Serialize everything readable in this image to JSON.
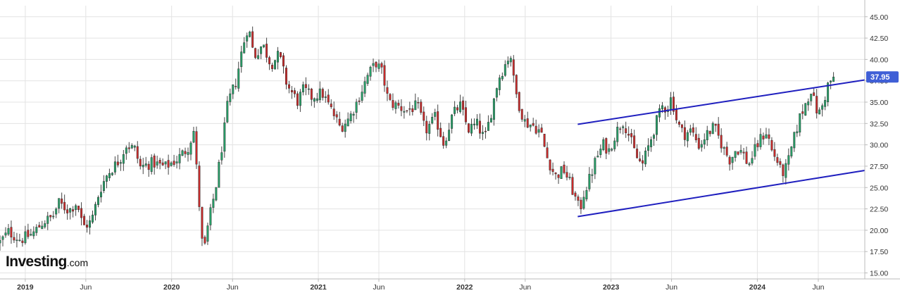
{
  "brand": {
    "name": "Investing",
    "suffix": ".com"
  },
  "colors": {
    "up": "#26a269",
    "down": "#cc2a2a",
    "channel": "#1f1fbf",
    "badge": "#3f5fd6",
    "axis": "#bbbbbb",
    "grid": "#e3e3e3"
  },
  "chart_data": {
    "type": "candlestick",
    "interval": "weekly",
    "ylim": [
      14.3,
      46.3
    ],
    "y_ticks": [
      "15.00",
      "17.50",
      "20.00",
      "22.50",
      "25.00",
      "27.50",
      "30.00",
      "32.50",
      "35.00",
      "37.50",
      "40.00",
      "42.50",
      "45.00"
    ],
    "x_ticks": [
      {
        "label": "2019",
        "date": "2019-01-01",
        "bold": true
      },
      {
        "label": "Jun",
        "date": "2019-06-01",
        "bold": false
      },
      {
        "label": "2020",
        "date": "2020-01-01",
        "bold": true
      },
      {
        "label": "Jun",
        "date": "2020-06-01",
        "bold": false
      },
      {
        "label": "2021",
        "date": "2021-01-01",
        "bold": true
      },
      {
        "label": "Jun",
        "date": "2021-06-01",
        "bold": false
      },
      {
        "label": "2022",
        "date": "2022-01-01",
        "bold": true
      },
      {
        "label": "Jun",
        "date": "2022-06-01",
        "bold": false
      },
      {
        "label": "2023",
        "date": "2023-01-01",
        "bold": true
      },
      {
        "label": "Jun",
        "date": "2023-06-01",
        "bold": false
      },
      {
        "label": "2024",
        "date": "2024-01-01",
        "bold": true
      },
      {
        "label": "Jun",
        "date": "2024-06-01",
        "bold": false
      }
    ],
    "x_range": [
      "2018-10-30",
      "2024-09-25"
    ],
    "last_price": "37.95",
    "close_anchors": [
      [
        "2018-10-30",
        18.6
      ],
      [
        "2018-11-20",
        19.8
      ],
      [
        "2018-12-20",
        18.9
      ],
      [
        "2019-01-20",
        19.6
      ],
      [
        "2019-02-15",
        21.0
      ],
      [
        "2019-03-10",
        21.5
      ],
      [
        "2019-03-25",
        23.2
      ],
      [
        "2019-04-20",
        22.3
      ],
      [
        "2019-05-10",
        23.3
      ],
      [
        "2019-05-25",
        20.4
      ],
      [
        "2019-06-15",
        21.0
      ],
      [
        "2019-07-05",
        24.6
      ],
      [
        "2019-07-25",
        26.6
      ],
      [
        "2019-08-25",
        28.3
      ],
      [
        "2019-09-10",
        30.0
      ],
      [
        "2019-10-01",
        29.5
      ],
      [
        "2019-10-15",
        27.4
      ],
      [
        "2019-11-15",
        27.9
      ],
      [
        "2019-12-15",
        27.4
      ],
      [
        "2020-01-15",
        28.3
      ],
      [
        "2020-02-10",
        29.6
      ],
      [
        "2020-02-25",
        31.6
      ],
      [
        "2020-03-10",
        23.0
      ],
      [
        "2020-03-20",
        16.8
      ],
      [
        "2020-04-01",
        20.6
      ],
      [
        "2020-04-20",
        25.0
      ],
      [
        "2020-05-10",
        31.2
      ],
      [
        "2020-05-20",
        34.8
      ],
      [
        "2020-06-10",
        37.5
      ],
      [
        "2020-06-25",
        41.2
      ],
      [
        "2020-07-10",
        44.0
      ],
      [
        "2020-07-25",
        40.3
      ],
      [
        "2020-08-15",
        41.8
      ],
      [
        "2020-09-05",
        39.4
      ],
      [
        "2020-09-25",
        40.6
      ],
      [
        "2020-10-15",
        37.0
      ],
      [
        "2020-11-10",
        35.1
      ],
      [
        "2020-11-25",
        36.5
      ],
      [
        "2020-12-15",
        35.6
      ],
      [
        "2021-01-10",
        36.1
      ],
      [
        "2021-02-01",
        34.2
      ],
      [
        "2021-02-25",
        32.0
      ],
      [
        "2021-03-20",
        33.2
      ],
      [
        "2021-04-10",
        35.3
      ],
      [
        "2021-05-05",
        38.2
      ],
      [
        "2021-05-25",
        39.6
      ],
      [
        "2021-06-10",
        38.4
      ],
      [
        "2021-06-25",
        35.0
      ],
      [
        "2021-07-15",
        34.6
      ],
      [
        "2021-08-10",
        34.0
      ],
      [
        "2021-09-05",
        34.6
      ],
      [
        "2021-09-25",
        31.6
      ],
      [
        "2021-10-20",
        33.2
      ],
      [
        "2021-11-10",
        30.1
      ],
      [
        "2021-12-01",
        33.4
      ],
      [
        "2021-12-20",
        34.7
      ],
      [
        "2022-01-10",
        31.8
      ],
      [
        "2022-02-01",
        32.4
      ],
      [
        "2022-02-20",
        30.6
      ],
      [
        "2022-03-10",
        34.2
      ],
      [
        "2022-03-25",
        37.6
      ],
      [
        "2022-04-10",
        39.2
      ],
      [
        "2022-04-25",
        40.8
      ],
      [
        "2022-05-05",
        36.8
      ],
      [
        "2022-05-20",
        34.1
      ],
      [
        "2022-06-01",
        32.6
      ],
      [
        "2022-06-20",
        32.3
      ],
      [
        "2022-07-10",
        31.5
      ],
      [
        "2022-07-25",
        28.6
      ],
      [
        "2022-08-15",
        26.3
      ],
      [
        "2022-09-05",
        27.1
      ],
      [
        "2022-09-20",
        25.6
      ],
      [
        "2022-10-05",
        23.6
      ],
      [
        "2022-10-15",
        22.3
      ],
      [
        "2022-10-25",
        24.3
      ],
      [
        "2022-11-10",
        26.2
      ],
      [
        "2022-11-25",
        28.4
      ],
      [
        "2022-12-15",
        30.2
      ],
      [
        "2022-12-25",
        29.1
      ],
      [
        "2023-01-15",
        31.6
      ],
      [
        "2023-02-01",
        32.8
      ],
      [
        "2023-02-15",
        31.1
      ],
      [
        "2023-03-05",
        28.6
      ],
      [
        "2023-03-20",
        27.6
      ],
      [
        "2023-04-10",
        30.6
      ],
      [
        "2023-04-25",
        32.8
      ],
      [
        "2023-05-10",
        34.6
      ],
      [
        "2023-05-20",
        34.2
      ],
      [
        "2023-06-01",
        35.6
      ],
      [
        "2023-06-15",
        32.6
      ],
      [
        "2023-07-01",
        31.2
      ],
      [
        "2023-07-20",
        31.7
      ],
      [
        "2023-08-10",
        29.8
      ],
      [
        "2023-08-25",
        31.1
      ],
      [
        "2023-09-15",
        32.1
      ],
      [
        "2023-10-10",
        29.4
      ],
      [
        "2023-10-25",
        28.2
      ],
      [
        "2023-11-10",
        29.6
      ],
      [
        "2023-11-25",
        29.1
      ],
      [
        "2023-12-10",
        27.6
      ],
      [
        "2023-12-25",
        29.3
      ],
      [
        "2024-01-10",
        30.8
      ],
      [
        "2024-01-25",
        31.6
      ],
      [
        "2024-02-05",
        29.4
      ],
      [
        "2024-02-20",
        28.1
      ],
      [
        "2024-03-01",
        26.6
      ],
      [
        "2024-03-15",
        27.4
      ],
      [
        "2024-03-30",
        30.3
      ],
      [
        "2024-04-15",
        33.1
      ],
      [
        "2024-04-30",
        34.8
      ],
      [
        "2024-05-15",
        36.6
      ],
      [
        "2024-05-25",
        34.2
      ],
      [
        "2024-06-05",
        33.7
      ],
      [
        "2024-06-15",
        35.1
      ],
      [
        "2024-06-25",
        37.0
      ],
      [
        "2024-07-10",
        37.95
      ]
    ],
    "channel": [
      {
        "name": "upper",
        "from": {
          "date": "2022-10-10",
          "value": 32.4
        },
        "to": {
          "date": "2024-09-25",
          "value": 37.6
        }
      },
      {
        "name": "lower",
        "from": {
          "date": "2022-10-10",
          "value": 21.6
        },
        "to": {
          "date": "2024-09-25",
          "value": 27.0
        }
      }
    ]
  }
}
